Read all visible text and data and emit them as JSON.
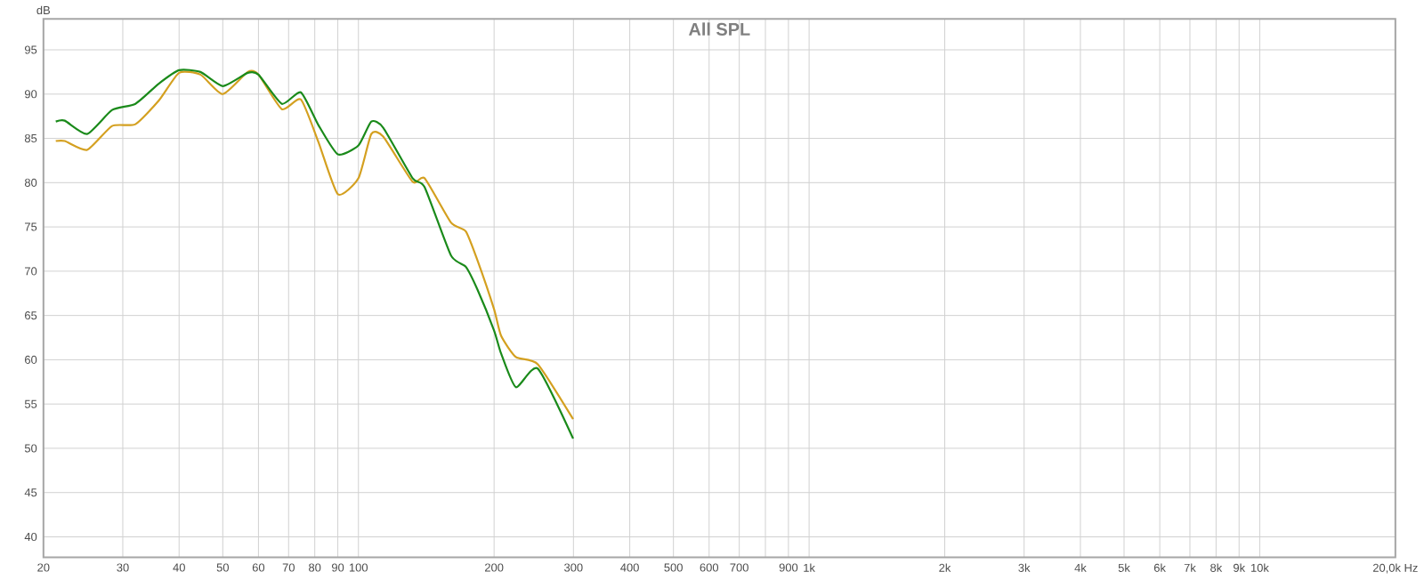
{
  "chart_data": {
    "type": "line",
    "title": "All SPL",
    "ylabel": "dB",
    "log": "x",
    "grid": true,
    "xlim": [
      20,
      20000
    ],
    "ylim": [
      37.7,
      98.5
    ],
    "xticks": [
      20,
      30,
      40,
      50,
      60,
      70,
      80,
      90,
      100,
      200,
      300,
      400,
      500,
      600,
      700,
      {
        "value": 800,
        "label": null
      },
      900,
      {
        "value": 1000,
        "label": "1k"
      },
      {
        "value": 2000,
        "label": "2k"
      },
      {
        "value": 3000,
        "label": "3k"
      },
      {
        "value": 4000,
        "label": "4k"
      },
      {
        "value": 5000,
        "label": "5k"
      },
      {
        "value": 6000,
        "label": "6k"
      },
      {
        "value": 7000,
        "label": "7k"
      },
      {
        "value": 8000,
        "label": "8k"
      },
      {
        "value": 9000,
        "label": "9k"
      },
      {
        "value": 10000,
        "label": "10k"
      },
      {
        "value": 20000,
        "label": "20,0k Hz"
      }
    ],
    "yticks": [
      40,
      45,
      50,
      55,
      60,
      65,
      70,
      75,
      80,
      85,
      90,
      95
    ],
    "x": [
      21.3,
      22.3,
      25.0,
      28.4,
      32.0,
      36.1,
      40,
      44.6,
      50,
      56.8,
      60,
      67.6,
      74.5,
      81.5,
      90,
      100,
      106.8,
      113.5,
      131.9,
      140.2,
      160.4,
      173.1,
      183.8,
      200,
      207.3,
      223.6,
      250,
      299.5
    ],
    "series": [
      {
        "color": "#d4a020",
        "values": [
          84.7,
          84.7,
          83.7,
          86.4,
          86.6,
          89.3,
          92.4,
          92.2,
          90.0,
          92.5,
          92.2,
          88.3,
          89.4,
          84.6,
          78.7,
          80.5,
          85.5,
          85.2,
          80.1,
          80.5,
          75.5,
          74.5,
          71.2,
          65.7,
          62.7,
          60.3,
          59.5,
          53.3
        ]
      },
      {
        "color": "#1a8a1a",
        "values": [
          86.9,
          87.0,
          85.5,
          88.2,
          88.9,
          91.2,
          92.7,
          92.5,
          90.9,
          92.4,
          92.2,
          88.9,
          90.2,
          86.5,
          83.2,
          84.2,
          86.9,
          86.2,
          80.5,
          79.5,
          71.8,
          70.5,
          67.9,
          63.3,
          60.7,
          56.9,
          59.0,
          51.1
        ]
      }
    ]
  }
}
